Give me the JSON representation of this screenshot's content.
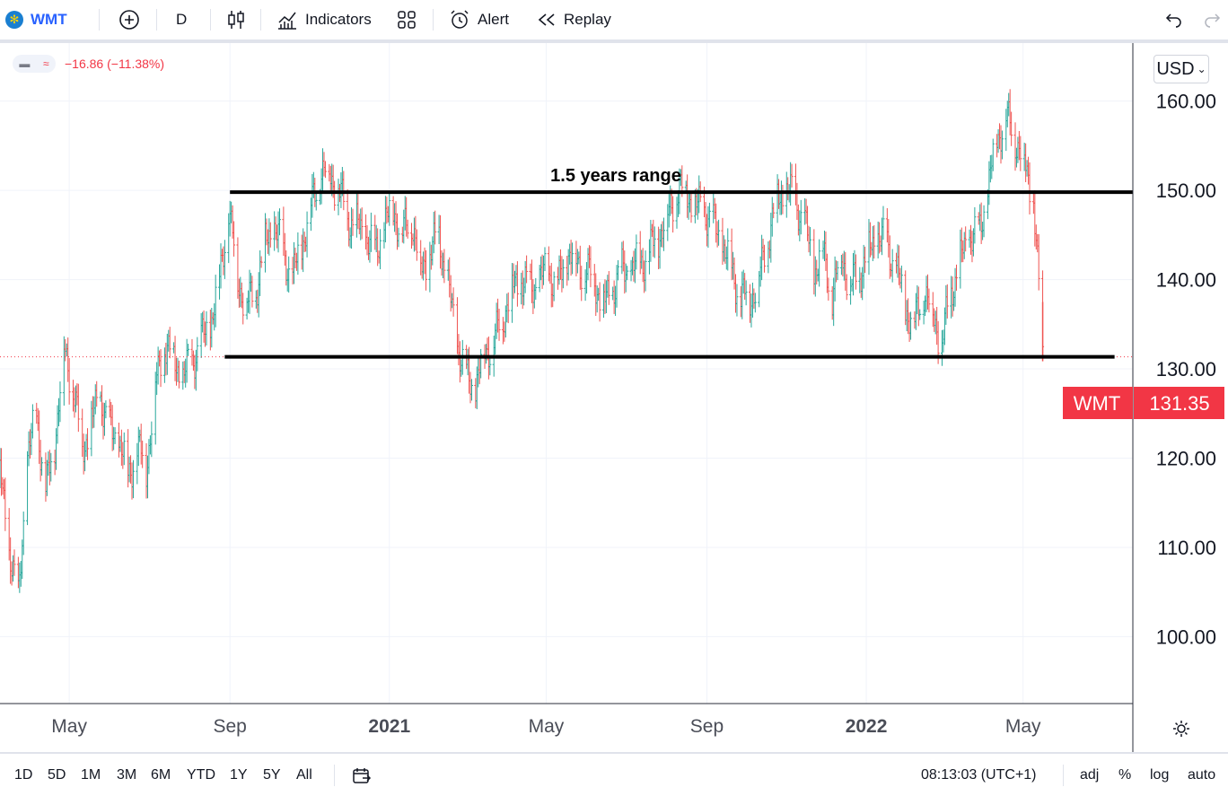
{
  "toolbar": {
    "symbol": "WMT",
    "add_icon": "plus-circle-icon",
    "interval": "D",
    "chart_type_icon": "candles-icon",
    "indicators_label": "Indicators",
    "layouts_icon": "grid-icon",
    "alert_label": "Alert",
    "replay_label": "Replay",
    "undo_icon": "undo-icon",
    "redo_icon": "redo-icon"
  },
  "legend": {
    "change": "−16.86 (−11.38%)"
  },
  "currency": "USD",
  "annotation": {
    "text": "1.5 years range"
  },
  "price_label": {
    "symbol": "WMT",
    "value": "131.35",
    "color": "#f23645"
  },
  "colors": {
    "up": "#26a69a",
    "down": "#ef5350",
    "grid": "#f0f3fa",
    "axis_text": "#131722"
  },
  "bottombar": {
    "ranges": [
      "1D",
      "5D",
      "1M",
      "3M",
      "6M",
      "YTD",
      "1Y",
      "5Y",
      "All"
    ],
    "date_range_icon": "calendar-goto-icon",
    "time": "08:13:03 (UTC+1)",
    "adj": "adj",
    "percent": "%",
    "log": "log",
    "auto": "auto"
  },
  "settings_icon": "gear-icon",
  "chart_data": {
    "type": "ohlc",
    "title": "WMT",
    "interval": "D",
    "y_ticks": [
      100,
      110,
      120,
      130,
      140,
      150,
      160
    ],
    "y_tick_labels": [
      "100.00",
      "110.00",
      "120.00",
      "130.00",
      "140.00",
      "150.00",
      "160.00"
    ],
    "ylim": [
      92.5,
      166.5
    ],
    "x_ticks": [
      {
        "label": "May",
        "date": "2020-05-01",
        "bold": false
      },
      {
        "label": "Sep",
        "date": "2020-09-01",
        "bold": false
      },
      {
        "label": "2021",
        "date": "2021-01-01",
        "bold": true
      },
      {
        "label": "May",
        "date": "2021-05-01",
        "bold": false
      },
      {
        "label": "Sep",
        "date": "2021-09-01",
        "bold": false
      },
      {
        "label": "2022",
        "date": "2022-01-01",
        "bold": true
      },
      {
        "label": "May",
        "date": "2022-05-01",
        "bold": false
      }
    ],
    "xlim": [
      "2020-03-09",
      "2022-07-24"
    ],
    "price_path": [
      [
        "2020-03-09",
        118
      ],
      [
        "2020-03-16",
        110
      ],
      [
        "2020-03-23",
        104
      ],
      [
        "2020-03-30",
        120
      ],
      [
        "2020-04-06",
        125
      ],
      [
        "2020-04-13",
        116
      ],
      [
        "2020-04-20",
        122
      ],
      [
        "2020-04-27",
        132
      ],
      [
        "2020-05-04",
        128
      ],
      [
        "2020-05-11",
        121
      ],
      [
        "2020-05-18",
        124
      ],
      [
        "2020-05-25",
        127
      ],
      [
        "2020-06-01",
        123
      ],
      [
        "2020-06-08",
        122
      ],
      [
        "2020-06-15",
        118
      ],
      [
        "2020-06-22",
        121
      ],
      [
        "2020-06-29",
        119
      ],
      [
        "2020-07-06",
        128
      ],
      [
        "2020-07-13",
        133
      ],
      [
        "2020-07-20",
        131
      ],
      [
        "2020-07-27",
        129
      ],
      [
        "2020-08-03",
        131
      ],
      [
        "2020-08-10",
        133
      ],
      [
        "2020-08-17",
        135
      ],
      [
        "2020-08-24",
        140
      ],
      [
        "2020-08-31",
        148
      ],
      [
        "2020-09-07",
        140
      ],
      [
        "2020-09-14",
        137
      ],
      [
        "2020-09-21",
        139
      ],
      [
        "2020-09-28",
        144
      ],
      [
        "2020-10-05",
        146
      ],
      [
        "2020-10-12",
        143
      ],
      [
        "2020-10-19",
        140
      ],
      [
        "2020-10-26",
        144
      ],
      [
        "2020-11-02",
        148
      ],
      [
        "2020-11-09",
        152
      ],
      [
        "2020-11-16",
        152
      ],
      [
        "2020-11-23",
        150
      ],
      [
        "2020-11-30",
        147
      ],
      [
        "2020-12-07",
        146
      ],
      [
        "2020-12-14",
        145
      ],
      [
        "2020-12-21",
        143
      ],
      [
        "2020-12-28",
        146
      ],
      [
        "2021-01-04",
        148
      ],
      [
        "2021-01-11",
        145
      ],
      [
        "2021-01-18",
        147
      ],
      [
        "2021-01-25",
        141
      ],
      [
        "2021-02-01",
        143
      ],
      [
        "2021-02-08",
        145
      ],
      [
        "2021-02-15",
        139
      ],
      [
        "2021-02-22",
        133
      ],
      [
        "2021-03-01",
        129
      ],
      [
        "2021-03-08",
        128
      ],
      [
        "2021-03-15",
        132
      ],
      [
        "2021-03-22",
        133
      ],
      [
        "2021-03-29",
        136
      ],
      [
        "2021-04-05",
        139
      ],
      [
        "2021-04-12",
        140
      ],
      [
        "2021-04-19",
        139
      ],
      [
        "2021-04-26",
        140
      ],
      [
        "2021-05-03",
        141
      ],
      [
        "2021-05-10",
        139
      ],
      [
        "2021-05-17",
        143
      ],
      [
        "2021-05-24",
        142
      ],
      [
        "2021-05-31",
        141
      ],
      [
        "2021-06-07",
        140
      ],
      [
        "2021-06-14",
        137
      ],
      [
        "2021-06-21",
        139
      ],
      [
        "2021-06-28",
        141
      ],
      [
        "2021-07-05",
        141
      ],
      [
        "2021-07-12",
        142
      ],
      [
        "2021-07-19",
        143
      ],
      [
        "2021-07-26",
        145
      ],
      [
        "2021-08-02",
        147
      ],
      [
        "2021-08-09",
        150
      ],
      [
        "2021-08-16",
        150
      ],
      [
        "2021-08-23",
        148
      ],
      [
        "2021-08-30",
        148
      ],
      [
        "2021-09-06",
        146
      ],
      [
        "2021-09-13",
        144
      ],
      [
        "2021-09-20",
        141
      ],
      [
        "2021-09-27",
        138
      ],
      [
        "2021-10-04",
        138
      ],
      [
        "2021-10-11",
        140
      ],
      [
        "2021-10-18",
        145
      ],
      [
        "2021-10-25",
        149
      ],
      [
        "2021-11-01",
        150
      ],
      [
        "2021-11-08",
        149
      ],
      [
        "2021-11-15",
        146
      ],
      [
        "2021-11-22",
        141
      ],
      [
        "2021-11-29",
        143
      ],
      [
        "2021-12-06",
        138
      ],
      [
        "2021-12-13",
        143
      ],
      [
        "2021-12-20",
        139
      ],
      [
        "2021-12-27",
        141
      ],
      [
        "2022-01-03",
        143
      ],
      [
        "2022-01-10",
        145
      ],
      [
        "2022-01-17",
        144
      ],
      [
        "2022-01-24",
        141
      ],
      [
        "2022-01-31",
        137
      ],
      [
        "2022-02-07",
        135
      ],
      [
        "2022-02-14",
        139
      ],
      [
        "2022-02-21",
        136
      ],
      [
        "2022-02-28",
        133
      ],
      [
        "2022-03-07",
        139
      ],
      [
        "2022-03-14",
        142
      ],
      [
        "2022-03-21",
        145
      ],
      [
        "2022-03-28",
        145
      ],
      [
        "2022-04-04",
        150
      ],
      [
        "2022-04-11",
        156
      ],
      [
        "2022-04-18",
        158
      ],
      [
        "2022-04-25",
        156
      ],
      [
        "2022-05-02",
        153
      ],
      [
        "2022-05-09",
        149
      ],
      [
        "2022-05-16",
        131.35
      ]
    ],
    "horizontal_lines": [
      {
        "value": 149.8,
        "start": "2020-09-01",
        "end": "2022-07-24",
        "color": "#000000"
      },
      {
        "value": 131.35,
        "start": "2020-08-28",
        "end": "2022-07-10",
        "color": "#000000"
      }
    ],
    "last_price": 131.35,
    "annotation_text": "1.5 years range"
  }
}
